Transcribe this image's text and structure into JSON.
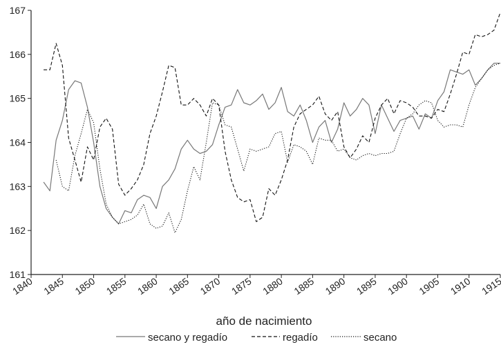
{
  "chart_data": {
    "type": "line",
    "title": "",
    "xlabel": "año de nacimiento",
    "ylabel": "",
    "xlim": [
      1840,
      1915
    ],
    "ylim": [
      161,
      167
    ],
    "x_ticks": [
      "1840",
      "1845",
      "1850",
      "1855",
      "1860",
      "1865",
      "1870",
      "1875",
      "1880",
      "1885",
      "1890",
      "1895",
      "1900",
      "1905",
      "1910",
      "1915"
    ],
    "y_ticks": [
      "161",
      "162",
      "163",
      "164",
      "165",
      "166",
      "167"
    ],
    "grid": false,
    "legend_position": "bottom",
    "series": [
      {
        "name": "secano y regadío",
        "color": "#777777",
        "style": "solid",
        "x": [
          1842,
          1843,
          1844,
          1845,
          1846,
          1847,
          1848,
          1849,
          1850,
          1851,
          1852,
          1853,
          1854,
          1855,
          1856,
          1857,
          1858,
          1859,
          1860,
          1861,
          1862,
          1863,
          1864,
          1865,
          1866,
          1867,
          1868,
          1869,
          1870,
          1871,
          1872,
          1873,
          1874,
          1875,
          1876,
          1877,
          1878,
          1879,
          1880,
          1881,
          1882,
          1883,
          1884,
          1885,
          1886,
          1887,
          1888,
          1889,
          1890,
          1891,
          1892,
          1893,
          1894,
          1895,
          1896,
          1897,
          1898,
          1899,
          1900,
          1901,
          1902,
          1903,
          1904,
          1905,
          1906,
          1907,
          1908,
          1909,
          1910,
          1911,
          1912,
          1913,
          1914,
          1915
        ],
        "values": [
          163.1,
          162.9,
          164.05,
          164.5,
          165.2,
          165.4,
          165.35,
          164.8,
          164.0,
          163.0,
          162.5,
          162.3,
          162.15,
          162.45,
          162.4,
          162.7,
          162.8,
          162.75,
          162.5,
          163.0,
          163.15,
          163.4,
          163.85,
          164.05,
          163.85,
          163.75,
          163.8,
          163.95,
          164.4,
          164.8,
          164.85,
          165.2,
          164.9,
          164.85,
          164.95,
          165.1,
          164.75,
          164.9,
          165.25,
          164.7,
          164.6,
          164.85,
          164.5,
          164.0,
          164.35,
          164.5,
          164.0,
          164.3,
          164.9,
          164.6,
          164.75,
          165.0,
          164.85,
          164.2,
          164.85,
          164.55,
          164.25,
          164.5,
          164.55,
          164.6,
          164.3,
          164.65,
          164.55,
          164.95,
          165.15,
          165.65,
          165.6,
          165.55,
          165.65,
          165.3,
          165.45,
          165.65,
          165.8,
          165.8
        ]
      },
      {
        "name": "regadío",
        "color": "#111111",
        "style": "dashed",
        "x": [
          1842,
          1843,
          1844,
          1845,
          1846,
          1847,
          1848,
          1849,
          1850,
          1851,
          1852,
          1853,
          1854,
          1855,
          1856,
          1857,
          1858,
          1859,
          1860,
          1861,
          1862,
          1863,
          1864,
          1865,
          1866,
          1867,
          1868,
          1869,
          1870,
          1871,
          1872,
          1873,
          1874,
          1875,
          1876,
          1877,
          1878,
          1879,
          1880,
          1881,
          1882,
          1883,
          1884,
          1885,
          1886,
          1887,
          1888,
          1889,
          1890,
          1891,
          1892,
          1893,
          1894,
          1895,
          1896,
          1897,
          1898,
          1899,
          1900,
          1901,
          1902,
          1903,
          1904,
          1905,
          1906,
          1907,
          1908,
          1909,
          1910,
          1911,
          1912,
          1913,
          1914,
          1915
        ],
        "values": [
          165.65,
          165.65,
          166.25,
          165.75,
          164.1,
          163.6,
          163.1,
          163.9,
          163.6,
          164.35,
          164.55,
          164.3,
          163.05,
          162.8,
          162.95,
          163.15,
          163.5,
          164.2,
          164.6,
          165.15,
          165.75,
          165.7,
          164.85,
          164.85,
          165.0,
          164.85,
          164.6,
          165.0,
          164.85,
          163.8,
          163.15,
          162.75,
          162.65,
          162.7,
          162.2,
          162.3,
          162.95,
          162.8,
          163.15,
          163.6,
          164.35,
          164.65,
          164.75,
          164.85,
          165.05,
          164.65,
          164.5,
          164.7,
          163.9,
          163.65,
          163.85,
          164.15,
          164.0,
          164.55,
          164.85,
          165.0,
          164.65,
          164.95,
          164.9,
          164.8,
          164.6,
          164.6,
          164.55,
          164.75,
          164.7,
          165.1,
          165.55,
          166.05,
          166.0,
          166.45,
          166.4,
          166.45,
          166.55,
          166.95
        ]
      },
      {
        "name": "secano",
        "color": "#111111",
        "style": "dotted",
        "x": [
          1844,
          1845,
          1846,
          1847,
          1848,
          1849,
          1850,
          1851,
          1852,
          1853,
          1854,
          1855,
          1856,
          1857,
          1858,
          1859,
          1860,
          1861,
          1862,
          1863,
          1864,
          1865,
          1866,
          1867,
          1868,
          1869,
          1870,
          1871,
          1872,
          1873,
          1874,
          1875,
          1876,
          1877,
          1878,
          1879,
          1880,
          1881,
          1882,
          1883,
          1884,
          1885,
          1886,
          1887,
          1888,
          1889,
          1890,
          1891,
          1892,
          1893,
          1894,
          1895,
          1896,
          1897,
          1898,
          1899,
          1900,
          1901,
          1902,
          1903,
          1904,
          1905,
          1906,
          1907,
          1908,
          1909,
          1910,
          1911,
          1912,
          1913,
          1914,
          1915
        ],
        "values": [
          163.6,
          163.0,
          162.9,
          163.7,
          164.2,
          164.75,
          164.45,
          163.4,
          162.6,
          162.3,
          162.15,
          162.2,
          162.25,
          162.35,
          162.6,
          162.15,
          162.05,
          162.1,
          162.4,
          161.95,
          162.25,
          162.9,
          163.45,
          163.15,
          164.0,
          164.9,
          164.85,
          164.4,
          164.35,
          163.85,
          163.35,
          163.85,
          163.8,
          163.85,
          163.9,
          164.2,
          164.25,
          163.55,
          163.95,
          163.9,
          163.8,
          163.5,
          164.1,
          164.05,
          164.05,
          163.8,
          163.85,
          163.65,
          163.6,
          163.7,
          163.75,
          163.7,
          163.75,
          163.75,
          163.8,
          164.2,
          164.55,
          164.65,
          164.85,
          164.95,
          164.9,
          164.5,
          164.35,
          164.4,
          164.4,
          164.35,
          164.85,
          165.25,
          165.45,
          165.65,
          165.75,
          165.8
        ]
      }
    ]
  }
}
